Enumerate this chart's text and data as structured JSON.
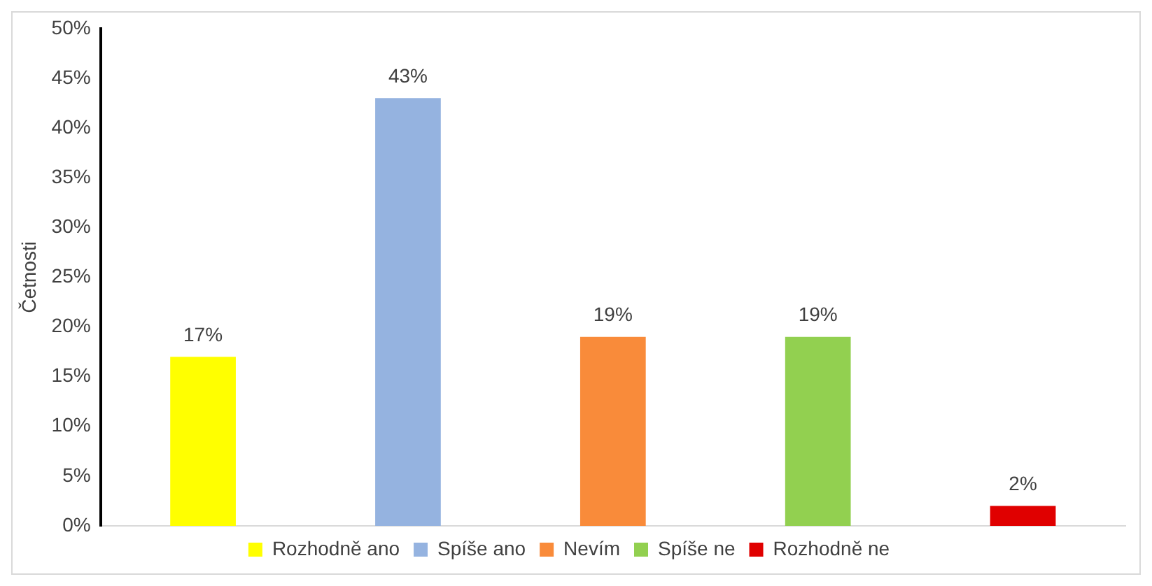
{
  "chart_data": {
    "type": "bar",
    "ylabel": "Četnosti",
    "categories": [
      null,
      null,
      null,
      null,
      null
    ],
    "series": [
      {
        "name": "Rozhodně ano",
        "color": "#ffff00",
        "values": [
          17,
          null,
          null,
          null,
          null
        ],
        "value_labels": [
          "17%",
          null,
          null,
          null,
          null
        ]
      },
      {
        "name": "Spíše ano",
        "color": "#95b3e0",
        "values": [
          null,
          43,
          null,
          null,
          null
        ],
        "value_labels": [
          null,
          "43%",
          null,
          null,
          null
        ]
      },
      {
        "name": "Nevím",
        "color": "#f98b3a",
        "values": [
          null,
          null,
          19,
          null,
          null
        ],
        "value_labels": [
          null,
          null,
          "19%",
          null,
          null
        ]
      },
      {
        "name": "Spíše ne",
        "color": "#92d050",
        "values": [
          null,
          null,
          null,
          19,
          null
        ],
        "value_labels": [
          null,
          null,
          null,
          "19%",
          null
        ]
      },
      {
        "name": "Rozhodně ne",
        "color": "#e00000",
        "values": [
          null,
          null,
          null,
          null,
          2
        ],
        "value_labels": [
          null,
          null,
          null,
          null,
          "2%"
        ]
      }
    ],
    "ylim": [
      0,
      50
    ],
    "yticks": [
      {
        "value": 0,
        "label": "0%"
      },
      {
        "value": 5,
        "label": "5%"
      },
      {
        "value": 10,
        "label": "10%"
      },
      {
        "value": 15,
        "label": "15%"
      },
      {
        "value": 20,
        "label": "20%"
      },
      {
        "value": 25,
        "label": "25%"
      },
      {
        "value": 30,
        "label": "30%"
      },
      {
        "value": 35,
        "label": "35%"
      },
      {
        "value": 40,
        "label": "40%"
      },
      {
        "value": 45,
        "label": "45%"
      },
      {
        "value": 50,
        "label": "50%"
      }
    ],
    "tick_labels": "y",
    "grid": false,
    "legend": "bottom"
  }
}
